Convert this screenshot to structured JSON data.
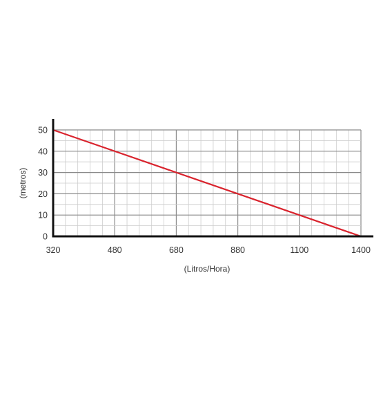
{
  "chart_data": {
    "type": "line",
    "title": "",
    "xlabel": "(Litros/Hora)",
    "ylabel": "(metros)",
    "x_ticks": [
      "320",
      "480",
      "680",
      "880",
      "1100",
      "1400"
    ],
    "y_ticks": [
      "0",
      "10",
      "20",
      "30",
      "40",
      "50"
    ],
    "ylim": [
      0,
      50
    ],
    "grid": true,
    "series": [
      {
        "x": [
          "320",
          "1400"
        ],
        "y": [
          50,
          0
        ]
      }
    ],
    "colors": {
      "line": "#d9232d",
      "axis": "#111111",
      "major_grid": "#8a8a8a",
      "minor_grid": "#cccccc"
    }
  }
}
